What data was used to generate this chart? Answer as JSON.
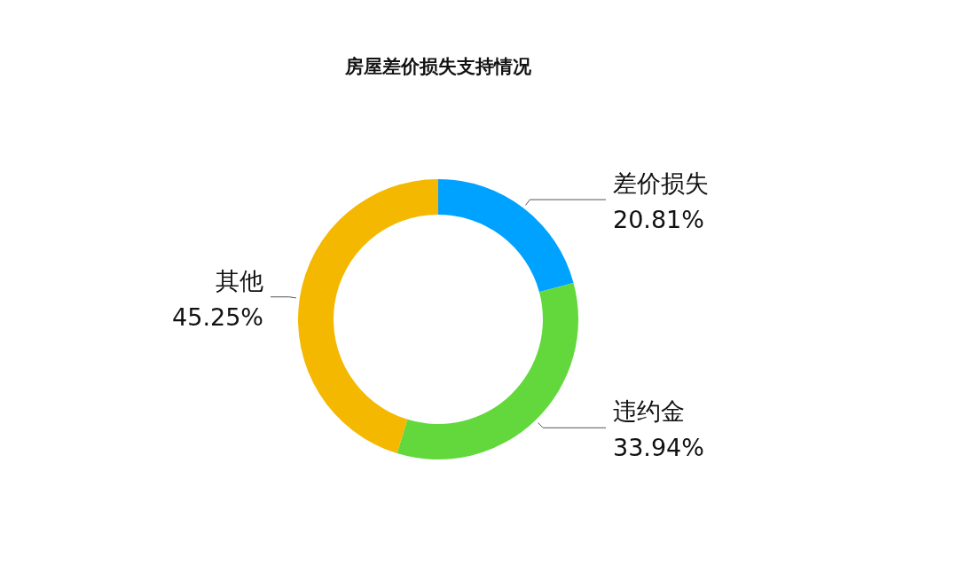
{
  "chart_data": {
    "type": "donut",
    "title": "房屋差价损失支持情况",
    "categories": [
      "差价损失",
      "违约金",
      "其他"
    ],
    "values": [
      20.81,
      33.94,
      45.25
    ],
    "colors": [
      "#00a2ff",
      "#62d83c",
      "#f5b800"
    ],
    "value_labels": [
      "20.81%",
      "33.94%",
      "45.25%"
    ]
  }
}
